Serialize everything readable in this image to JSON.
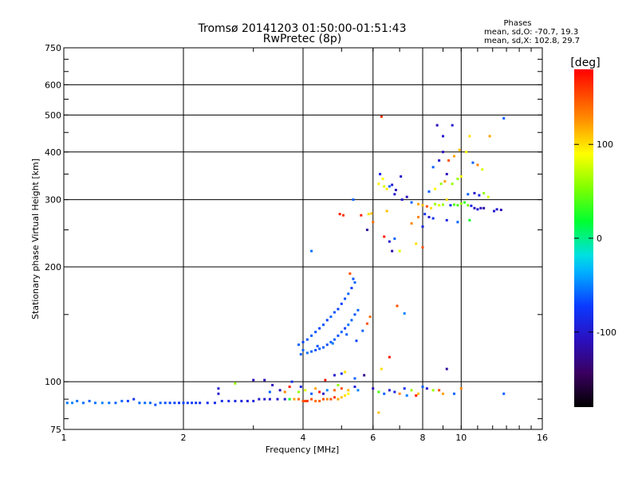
{
  "chart_data": {
    "type": "scatter",
    "title": "Tromsø 20141203 01:50:00-01:51:43",
    "subtitle": "RwPretec (8p)",
    "xlabel": "Frequency [MHz]",
    "ylabel": "Stationary phase Virtual Height [km]",
    "xscale": "log2",
    "yscale": "log",
    "xlim": [
      1,
      16
    ],
    "ylim": [
      75,
      750
    ],
    "x_ticks": [
      1,
      2,
      4,
      6,
      8,
      10,
      16
    ],
    "x_grid": [
      2,
      4,
      6,
      8,
      10
    ],
    "y_ticks": [
      75,
      100,
      200,
      300,
      400,
      500,
      600,
      750
    ],
    "y_grid": [
      100,
      200,
      300,
      400,
      500,
      600
    ],
    "grid": true,
    "legend": {
      "title": "Phases",
      "lines": [
        "mean, sd,O: -70.7, 19.3",
        "mean, sd,X: 102.8, 29.7"
      ],
      "placement": "top-right"
    },
    "colorbar": {
      "label": "[deg]",
      "range": [
        -180,
        180
      ],
      "ticks": [
        100,
        0,
        -100
      ],
      "placement": "right"
    },
    "points": [
      [
        1.02,
        88,
        -55
      ],
      [
        1.05,
        88,
        -50
      ],
      [
        1.08,
        89,
        -55
      ],
      [
        1.12,
        88,
        -55
      ],
      [
        1.16,
        89,
        -60
      ],
      [
        1.2,
        88,
        -55
      ],
      [
        1.25,
        88,
        -52
      ],
      [
        1.3,
        88,
        -55
      ],
      [
        1.35,
        88,
        -60
      ],
      [
        1.4,
        89,
        -60
      ],
      [
        1.45,
        89,
        -70
      ],
      [
        1.5,
        90,
        -80
      ],
      [
        1.55,
        88,
        -60
      ],
      [
        1.6,
        88,
        -58
      ],
      [
        1.65,
        88,
        -60
      ],
      [
        1.7,
        87,
        -65
      ],
      [
        1.75,
        88,
        -60
      ],
      [
        1.8,
        88,
        -65
      ],
      [
        1.85,
        88,
        -70
      ],
      [
        1.9,
        88,
        -70
      ],
      [
        1.95,
        88,
        -75
      ],
      [
        2.0,
        88,
        -70
      ],
      [
        2.05,
        88,
        -72
      ],
      [
        2.1,
        88,
        -75
      ],
      [
        2.15,
        88,
        -78
      ],
      [
        2.2,
        88,
        -80
      ],
      [
        2.3,
        88,
        -82
      ],
      [
        2.4,
        88,
        -85
      ],
      [
        2.5,
        89,
        -85
      ],
      [
        2.6,
        89,
        -88
      ],
      [
        2.7,
        89,
        -90
      ],
      [
        2.8,
        89,
        -92
      ],
      [
        2.9,
        89,
        -95
      ],
      [
        3.0,
        89,
        -95
      ],
      [
        3.1,
        90,
        -98
      ],
      [
        3.2,
        90,
        -100
      ],
      [
        3.3,
        90,
        -100
      ],
      [
        3.45,
        90,
        -100
      ],
      [
        3.6,
        90,
        -100
      ],
      [
        3.7,
        90,
        20
      ],
      [
        3.8,
        90,
        120
      ],
      [
        3.9,
        90,
        140
      ],
      [
        4.0,
        89,
        150
      ],
      [
        4.05,
        89,
        155
      ],
      [
        4.1,
        89,
        160
      ],
      [
        4.2,
        90,
        150
      ],
      [
        4.3,
        89,
        140
      ],
      [
        4.4,
        89,
        145
      ],
      [
        4.5,
        90,
        150
      ],
      [
        4.6,
        90,
        130
      ],
      [
        4.7,
        90,
        150
      ],
      [
        4.8,
        91,
        160
      ],
      [
        4.9,
        90,
        120
      ],
      [
        5.0,
        91,
        110
      ],
      [
        5.1,
        92,
        100
      ],
      [
        5.2,
        93,
        90
      ],
      [
        2.45,
        93,
        -100
      ],
      [
        2.45,
        96,
        -100
      ],
      [
        2.7,
        99,
        60
      ],
      [
        3.0,
        101,
        -110
      ],
      [
        3.2,
        101,
        -110
      ],
      [
        3.35,
        98,
        -110
      ],
      [
        3.3,
        94,
        -60
      ],
      [
        3.5,
        95,
        -110
      ],
      [
        3.6,
        94,
        130
      ],
      [
        3.7,
        97,
        170
      ],
      [
        3.75,
        100,
        -80
      ],
      [
        3.9,
        94,
        60
      ],
      [
        3.95,
        97,
        -90
      ],
      [
        4.05,
        95,
        80
      ],
      [
        4.2,
        93,
        -60
      ],
      [
        4.3,
        96,
        120
      ],
      [
        4.4,
        94,
        170
      ],
      [
        4.5,
        93,
        -100
      ],
      [
        4.55,
        101,
        170
      ],
      [
        4.6,
        95,
        -50
      ],
      [
        4.8,
        95,
        140
      ],
      [
        4.9,
        98,
        60
      ],
      [
        5.0,
        96,
        150
      ],
      [
        5.2,
        95,
        110
      ],
      [
        5.4,
        97,
        -90
      ],
      [
        5.5,
        95,
        -50
      ],
      [
        5.7,
        104,
        -130
      ],
      [
        4.8,
        104,
        -100
      ],
      [
        5.0,
        105,
        -80
      ],
      [
        5.1,
        106,
        100
      ],
      [
        5.4,
        102,
        -60
      ],
      [
        3.9,
        125,
        -60
      ],
      [
        4.0,
        127,
        -70
      ],
      [
        4.1,
        129,
        -65
      ],
      [
        4.2,
        132,
        -60
      ],
      [
        4.3,
        135,
        -65
      ],
      [
        4.4,
        138,
        -70
      ],
      [
        4.5,
        141,
        -65
      ],
      [
        4.6,
        145,
        -70
      ],
      [
        4.7,
        148,
        -60
      ],
      [
        4.8,
        152,
        -65
      ],
      [
        4.9,
        155,
        -70
      ],
      [
        5.0,
        160,
        -70
      ],
      [
        5.1,
        165,
        -65
      ],
      [
        5.2,
        170,
        -60
      ],
      [
        5.3,
        176,
        -70
      ],
      [
        5.4,
        182,
        -60
      ],
      [
        5.25,
        192,
        150
      ],
      [
        5.35,
        186,
        -65
      ],
      [
        3.95,
        118,
        -60
      ],
      [
        4.1,
        119,
        -55
      ],
      [
        4.2,
        120,
        -60
      ],
      [
        4.3,
        121,
        -65
      ],
      [
        4.4,
        122,
        -60
      ],
      [
        4.5,
        123,
        -60
      ],
      [
        4.6,
        125,
        -65
      ],
      [
        4.7,
        127,
        -60
      ],
      [
        4.8,
        129,
        -60
      ],
      [
        4.9,
        132,
        -65
      ],
      [
        5.0,
        135,
        -60
      ],
      [
        5.1,
        138,
        -70
      ],
      [
        5.2,
        141,
        -55
      ],
      [
        5.3,
        145,
        -60
      ],
      [
        5.4,
        150,
        -65
      ],
      [
        5.5,
        154,
        -60
      ],
      [
        4.0,
        121,
        -60
      ],
      [
        4.35,
        124,
        -65
      ],
      [
        4.75,
        126,
        -55
      ],
      [
        5.15,
        133,
        -60
      ],
      [
        5.45,
        128,
        -70
      ],
      [
        5.65,
        136,
        -60
      ],
      [
        5.8,
        142,
        150
      ],
      [
        5.9,
        148,
        140
      ],
      [
        4.2,
        220,
        -55
      ],
      [
        5.35,
        300,
        -60
      ],
      [
        5.6,
        273,
        170
      ],
      [
        5.85,
        275,
        100
      ],
      [
        5.95,
        276,
        110
      ],
      [
        6.0,
        262,
        140
      ],
      [
        5.8,
        250,
        -120
      ],
      [
        4.95,
        275,
        170
      ],
      [
        5.05,
        273,
        160
      ],
      [
        6.3,
        495,
        160
      ],
      [
        6.25,
        350,
        -90
      ],
      [
        6.35,
        340,
        90
      ],
      [
        6.2,
        330,
        95
      ],
      [
        6.4,
        325,
        80
      ],
      [
        6.5,
        320,
        95
      ],
      [
        6.6,
        325,
        -60
      ],
      [
        6.7,
        328,
        -100
      ],
      [
        6.85,
        318,
        -110
      ],
      [
        7.05,
        345,
        -100
      ],
      [
        6.5,
        280,
        110
      ],
      [
        6.6,
        233,
        -100
      ],
      [
        6.7,
        220,
        -120
      ],
      [
        6.8,
        237,
        -60
      ],
      [
        6.4,
        240,
        170
      ],
      [
        7.1,
        300,
        -100
      ],
      [
        7.3,
        305,
        -110
      ],
      [
        7.5,
        295,
        -60
      ],
      [
        7.8,
        292,
        120
      ],
      [
        8.0,
        290,
        110
      ],
      [
        8.2,
        288,
        150
      ],
      [
        8.4,
        285,
        100
      ],
      [
        8.6,
        292,
        60
      ],
      [
        8.8,
        290,
        80
      ],
      [
        9.0,
        291,
        60
      ],
      [
        9.2,
        300,
        100
      ],
      [
        9.4,
        290,
        -80
      ],
      [
        9.6,
        291,
        40
      ],
      [
        9.8,
        290,
        40
      ],
      [
        10.0,
        293,
        60
      ],
      [
        10.2,
        295,
        30
      ],
      [
        10.4,
        290,
        50
      ],
      [
        10.6,
        289,
        -90
      ],
      [
        10.8,
        285,
        -110
      ],
      [
        11.0,
        283,
        -100
      ],
      [
        11.2,
        285,
        -110
      ],
      [
        11.4,
        285,
        -120
      ],
      [
        12.1,
        280,
        -100
      ],
      [
        12.3,
        283,
        -100
      ],
      [
        12.6,
        282,
        -110
      ],
      [
        8.1,
        275,
        -80
      ],
      [
        8.3,
        270,
        -100
      ],
      [
        8.5,
        268,
        -80
      ],
      [
        9.2,
        265,
        -90
      ],
      [
        9.8,
        262,
        -60
      ],
      [
        10.5,
        265,
        20
      ],
      [
        8.3,
        315,
        -60
      ],
      [
        8.6,
        320,
        90
      ],
      [
        8.9,
        330,
        60
      ],
      [
        9.1,
        335,
        120
      ],
      [
        9.5,
        330,
        60
      ],
      [
        9.8,
        340,
        60
      ],
      [
        10.0,
        345,
        90
      ],
      [
        10.4,
        310,
        -60
      ],
      [
        10.8,
        312,
        -100
      ],
      [
        11.1,
        308,
        -90
      ],
      [
        11.4,
        312,
        60
      ],
      [
        11.7,
        305,
        80
      ],
      [
        8.5,
        365,
        -60
      ],
      [
        8.8,
        380,
        -100
      ],
      [
        9.0,
        400,
        -110
      ],
      [
        9.3,
        380,
        150
      ],
      [
        9.6,
        390,
        120
      ],
      [
        9.9,
        405,
        110
      ],
      [
        10.3,
        400,
        90
      ],
      [
        10.7,
        375,
        -60
      ],
      [
        11.0,
        370,
        130
      ],
      [
        11.3,
        360,
        80
      ],
      [
        9.2,
        350,
        -110
      ],
      [
        8.7,
        470,
        -110
      ],
      [
        9.0,
        440,
        -100
      ],
      [
        9.5,
        470,
        -100
      ],
      [
        10.5,
        440,
        100
      ],
      [
        11.8,
        440,
        120
      ],
      [
        12.8,
        490,
        -60
      ],
      [
        6.8,
        310,
        -100
      ],
      [
        7.0,
        220,
        80
      ],
      [
        6.9,
        158,
        150
      ],
      [
        7.2,
        151,
        -50
      ],
      [
        7.5,
        260,
        130
      ],
      [
        7.7,
        230,
        100
      ],
      [
        8.0,
        225,
        150
      ],
      [
        7.8,
        270,
        130
      ],
      [
        8.0,
        255,
        -90
      ],
      [
        6.3,
        108,
        100
      ],
      [
        6.6,
        116,
        170
      ],
      [
        6.0,
        96,
        -110
      ],
      [
        6.2,
        94,
        40
      ],
      [
        6.4,
        93,
        -60
      ],
      [
        6.6,
        95,
        -100
      ],
      [
        6.8,
        94,
        -90
      ],
      [
        7.0,
        93,
        130
      ],
      [
        7.2,
        96,
        -80
      ],
      [
        7.5,
        95,
        60
      ],
      [
        7.8,
        93,
        110
      ],
      [
        8.0,
        97,
        -60
      ],
      [
        8.2,
        96,
        -100
      ],
      [
        8.5,
        95,
        60
      ],
      [
        8.8,
        95,
        150
      ],
      [
        9.0,
        93,
        120
      ],
      [
        9.2,
        108,
        -120
      ],
      [
        9.6,
        93,
        -60
      ],
      [
        10.0,
        96,
        130
      ],
      [
        12.8,
        93,
        -60
      ],
      [
        7.3,
        92,
        -50
      ],
      [
        7.7,
        92,
        170
      ],
      [
        6.2,
        83,
        110
      ]
    ]
  }
}
